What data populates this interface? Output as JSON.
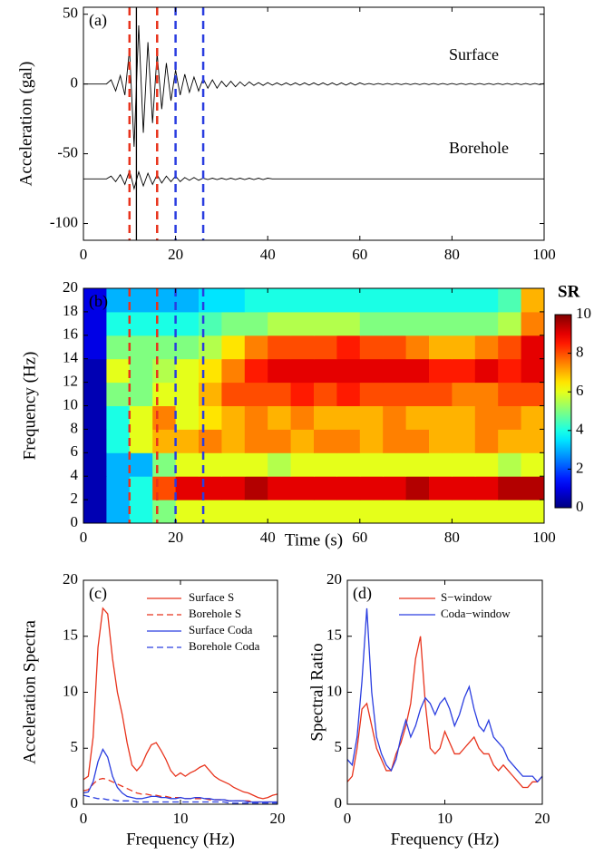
{
  "chart_data": [
    {
      "type": "line",
      "label": "(a)",
      "ylabel": "Acceleration (gal)",
      "xlim": [
        0,
        100
      ],
      "xticks": [
        0,
        20,
        40,
        60,
        80,
        100
      ],
      "ylim": [
        -112,
        55
      ],
      "yticks": [
        -100,
        -50,
        0,
        50
      ],
      "annotations": [
        "Surface",
        "Borehole"
      ],
      "vlines": [
        {
          "x": 10,
          "color": "#e8331c",
          "dash": true
        },
        {
          "x": 11.5,
          "color": "#000000",
          "dash": false
        },
        {
          "x": 16,
          "color": "#e8331c",
          "dash": true
        },
        {
          "x": 20,
          "color": "#2a3de0",
          "dash": true
        },
        {
          "x": 26,
          "color": "#2a3de0",
          "dash": true
        }
      ],
      "x": [
        0,
        1,
        2,
        3,
        4,
        5,
        6,
        7,
        8,
        9,
        10,
        11,
        12,
        13,
        14,
        15,
        16,
        17,
        18,
        19,
        20,
        21,
        22,
        23,
        24,
        25,
        26,
        27,
        28,
        29,
        30,
        31,
        32,
        33,
        34,
        35,
        36,
        37,
        38,
        39,
        40,
        41,
        42,
        43,
        44,
        45,
        46,
        47,
        48,
        49,
        50,
        51,
        52,
        53,
        54,
        55,
        56,
        57,
        58,
        59,
        60,
        61,
        62,
        63,
        64,
        65,
        66,
        67,
        68,
        69,
        70,
        71,
        72,
        73,
        74,
        75,
        76,
        77,
        78,
        79,
        80,
        81,
        82,
        83,
        84,
        85,
        86,
        87,
        88,
        89,
        90,
        91,
        92,
        93,
        94,
        95,
        96,
        97,
        98,
        99,
        100
      ],
      "series": [
        {
          "color": "#000000",
          "dash": false,
          "values": [
            0,
            0,
            0,
            0,
            0,
            0,
            3,
            -5,
            6,
            -8,
            25,
            -45,
            42,
            -35,
            30,
            -28,
            22,
            -18,
            15,
            -12,
            10,
            -8,
            7,
            -6,
            5,
            -5,
            4,
            -3,
            3,
            -3,
            2,
            -2,
            2,
            -2,
            1.5,
            -1.5,
            1.5,
            -1,
            1,
            -1,
            1,
            -0.8,
            0.8,
            -0.8,
            0.8,
            -0.8,
            0.8,
            -0.8,
            0.8,
            -0.8,
            0.8,
            -0.8,
            0.8,
            -0.8,
            0.8,
            -0.8,
            0.8,
            -0.8,
            0.8,
            -0.8,
            0.8,
            -0.4,
            0.4,
            -0.4,
            0.4,
            -0.4,
            0.4,
            -0.4,
            0.4,
            -0.4,
            0.4,
            -0.4,
            0.4,
            -0.4,
            0.4,
            -0.4,
            0.4,
            -0.4,
            0.4,
            -0.4,
            0.4,
            -0.4,
            0.4,
            -0.4,
            0.4,
            -0.4,
            0.4,
            -0.4,
            0.4,
            -0.4,
            0.4,
            -0.4,
            0.4,
            -0.4,
            0.4,
            -0.4,
            0.4,
            -0.4,
            0.4,
            -0.4,
            0.4
          ]
        },
        {
          "color": "#000000",
          "dash": false,
          "values": [
            -68,
            -68,
            -68,
            -68,
            -68,
            -68,
            -66,
            -70,
            -65,
            -72,
            -62,
            -75,
            -63,
            -73,
            -64,
            -72,
            -65,
            -71,
            -66,
            -70,
            -66,
            -70,
            -67,
            -69,
            -67,
            -69,
            -67.5,
            -68.5,
            -67.5,
            -68.5,
            -67.5,
            -68.5,
            -67.5,
            -68.5,
            -67.5,
            -68.5,
            -67.5,
            -68.5,
            -67.5,
            -68.5,
            -67.5,
            -68,
            -68,
            -68,
            -68,
            -68,
            -68,
            -68,
            -68,
            -68,
            -68,
            -68,
            -68,
            -68,
            -68,
            -68,
            -68,
            -68,
            -68,
            -68,
            -68,
            -68,
            -68,
            -68,
            -68,
            -68,
            -68,
            -68,
            -68,
            -68,
            -68,
            -68,
            -68,
            -68,
            -68,
            -68,
            -68,
            -68,
            -68,
            -68,
            -68,
            -68,
            -68,
            -68,
            -68,
            -68,
            -68,
            -68,
            -68,
            -68,
            -68,
            -68,
            -68,
            -68,
            -68,
            -68,
            -68,
            -68,
            -68,
            -68,
            -68
          ]
        }
      ]
    },
    {
      "type": "heatmap",
      "label": "(b)",
      "xlabel": "Time (s)",
      "ylabel": "Frequency (Hz)",
      "xlim": [
        0,
        100
      ],
      "xticks": [
        0,
        20,
        40,
        60,
        80,
        100
      ],
      "ylim": [
        0,
        20
      ],
      "yticks": [
        0,
        2,
        4,
        6,
        8,
        10,
        12,
        14,
        16,
        18,
        20
      ],
      "colormap": "jet",
      "zlim": [
        0,
        10
      ],
      "colorbar_label": "SR",
      "colorbar_ticks": [
        0,
        2,
        4,
        6,
        8,
        10
      ],
      "vlines": [
        {
          "x": 10,
          "color": "#e8331c",
          "dash": true
        },
        {
          "x": 16,
          "color": "#e8331c",
          "dash": true
        },
        {
          "x": 20,
          "color": "#2a3de0",
          "dash": true
        },
        {
          "x": 26,
          "color": "#2a3de0",
          "dash": true
        }
      ],
      "x_edges": [
        0,
        5,
        10,
        15,
        20,
        25,
        30,
        35,
        40,
        45,
        50,
        55,
        60,
        65,
        70,
        75,
        80,
        85,
        90,
        95,
        100
      ],
      "y_edges": [
        0,
        2,
        4,
        6,
        8,
        10,
        12,
        14,
        16,
        18,
        20
      ],
      "z": [
        [
          0.5,
          3,
          4,
          5,
          6,
          6,
          6,
          6,
          6,
          6,
          6,
          6,
          6,
          6,
          6,
          6,
          6,
          6,
          6,
          6
        ],
        [
          0.5,
          3,
          4,
          8,
          9,
          9,
          9,
          9.5,
          9,
          9,
          9,
          9,
          9,
          9,
          9.5,
          9,
          9,
          9,
          9.5,
          9.5
        ],
        [
          0.5,
          3,
          3,
          5,
          6,
          6,
          6,
          6,
          5.5,
          6,
          6,
          6,
          6,
          6,
          6,
          6,
          6,
          6,
          5.5,
          6
        ],
        [
          0.5,
          4,
          6,
          7,
          7,
          7.5,
          7,
          7.5,
          7.5,
          7,
          7.5,
          7.5,
          7,
          7.5,
          7.5,
          7,
          7,
          7.5,
          7,
          7
        ],
        [
          0.5,
          4,
          6,
          7.5,
          6,
          6.5,
          7,
          7.5,
          7,
          7.5,
          7,
          7,
          7,
          7.5,
          7,
          7,
          7,
          7.5,
          7.5,
          7
        ],
        [
          0.5,
          5,
          5,
          6,
          6,
          7,
          8,
          8,
          8,
          8.5,
          8,
          8.5,
          8,
          8,
          8,
          8,
          7.5,
          7.5,
          8,
          8
        ],
        [
          0.5,
          6,
          5,
          5.5,
          6,
          6.5,
          7.5,
          8.5,
          9,
          9,
          9,
          9,
          9,
          9,
          9,
          8.5,
          8.5,
          9,
          8.5,
          9
        ],
        [
          1,
          5,
          5,
          5,
          5,
          5.5,
          6.5,
          7.5,
          8,
          8,
          8,
          8.5,
          8,
          8,
          7.5,
          7,
          7,
          7.5,
          8,
          9
        ],
        [
          1,
          4,
          4,
          4,
          4,
          4.5,
          5,
          5,
          5.5,
          5.5,
          5.5,
          5.5,
          5,
          5,
          5,
          5,
          5,
          5,
          5.5,
          7.5
        ],
        [
          1,
          3,
          3,
          3,
          3,
          3.5,
          3.5,
          4,
          4,
          4,
          4,
          4,
          4,
          4,
          4,
          4,
          4,
          4,
          4.5,
          7
        ]
      ]
    },
    {
      "type": "line",
      "label": "(c)",
      "xlabel": "Frequency (Hz)",
      "ylabel": "Acceleration Spectra",
      "legend": true,
      "xlim": [
        0,
        20
      ],
      "xticks": [
        0,
        10,
        20
      ],
      "ylim": [
        0,
        20
      ],
      "yticks": [
        0,
        5,
        10,
        15,
        20
      ],
      "x": [
        0,
        0.5,
        1,
        1.5,
        2,
        2.5,
        3,
        3.5,
        4,
        4.5,
        5,
        5.5,
        6,
        6.5,
        7,
        7.5,
        8,
        8.5,
        9,
        9.5,
        10,
        10.5,
        11,
        11.5,
        12,
        12.5,
        13,
        13.5,
        14,
        14.5,
        15,
        15.5,
        16,
        16.5,
        17,
        17.5,
        18,
        18.5,
        19,
        19.5,
        20
      ],
      "series": [
        {
          "name": "Surface S",
          "color": "#e8331c",
          "dash": false,
          "values": [
            2.2,
            2.5,
            6,
            14,
            17.5,
            17,
            13,
            10,
            8,
            5.5,
            3.5,
            3,
            3.5,
            4.5,
            5.3,
            5.5,
            4.8,
            4,
            3,
            2.5,
            2.8,
            2.5,
            2.8,
            3,
            3.3,
            3.5,
            3,
            2.5,
            2.2,
            2,
            1.8,
            1.5,
            1.3,
            1.1,
            1,
            0.8,
            0.6,
            0.5,
            0.6,
            0.8,
            0.9
          ]
        },
        {
          "name": "Borehole S",
          "color": "#e8331c",
          "dash": true,
          "values": [
            1.2,
            1.3,
            1.8,
            2.2,
            2.3,
            2.2,
            2.0,
            1.8,
            1.6,
            1.4,
            1.2,
            1.0,
            0.9,
            0.9,
            0.8,
            0.8,
            0.7,
            0.7,
            0.6,
            0.6,
            0.6,
            0.5,
            0.5,
            0.5,
            0.5,
            0.5,
            0.4,
            0.4,
            0.4,
            0.4,
            0.3,
            0.3,
            0.3,
            0.3,
            0.3,
            0.2,
            0.2,
            0.2,
            0.2,
            0.2,
            0.2
          ]
        },
        {
          "name": "Surface Coda",
          "color": "#2a3de0",
          "dash": false,
          "values": [
            1.0,
            1.1,
            2.0,
            3.8,
            4.9,
            4.2,
            2.5,
            1.5,
            1.0,
            0.7,
            0.6,
            0.5,
            0.5,
            0.6,
            0.7,
            0.7,
            0.6,
            0.6,
            0.5,
            0.5,
            0.6,
            0.5,
            0.5,
            0.6,
            0.6,
            0.5,
            0.5,
            0.4,
            0.4,
            0.4,
            0.3,
            0.3,
            0.3,
            0.3,
            0.2,
            0.2,
            0.2,
            0.2,
            0.2,
            0.2,
            0.2
          ]
        },
        {
          "name": "Borehole Coda",
          "color": "#2a3de0",
          "dash": true,
          "values": [
            0.8,
            0.7,
            0.6,
            0.5,
            0.5,
            0.4,
            0.4,
            0.3,
            0.3,
            0.3,
            0.3,
            0.2,
            0.2,
            0.2,
            0.2,
            0.2,
            0.2,
            0.2,
            0.2,
            0.2,
            0.2,
            0.2,
            0.2,
            0.2,
            0.2,
            0.2,
            0.2,
            0.2,
            0.2,
            0.2,
            0.1,
            0.1,
            0.1,
            0.1,
            0.1,
            0.1,
            0.1,
            0.1,
            0.1,
            0.1,
            0.1
          ]
        }
      ]
    },
    {
      "type": "line",
      "label": "(d)",
      "xlabel": "Frequency (Hz)",
      "ylabel": "Spectral Ratio",
      "legend": true,
      "xlim": [
        0,
        20
      ],
      "xticks": [
        0,
        10,
        20
      ],
      "ylim": [
        0,
        20
      ],
      "yticks": [
        0,
        5,
        10,
        15,
        20
      ],
      "x": [
        0,
        0.5,
        1,
        1.5,
        2,
        2.5,
        3,
        3.5,
        4,
        4.5,
        5,
        5.5,
        6,
        6.5,
        7,
        7.5,
        8,
        8.5,
        9,
        9.5,
        10,
        10.5,
        11,
        11.5,
        12,
        12.5,
        13,
        13.5,
        14,
        14.5,
        15,
        15.5,
        16,
        16.5,
        17,
        17.5,
        18,
        18.5,
        19,
        19.5,
        20
      ],
      "series": [
        {
          "name": "S−window",
          "color": "#e8331c",
          "dash": false,
          "values": [
            2,
            2.5,
            5,
            8.5,
            9,
            7,
            5,
            4,
            3,
            3,
            4.5,
            5.5,
            7,
            9,
            13,
            15,
            9,
            5,
            4.5,
            5,
            6.5,
            5.5,
            4.5,
            4.5,
            5,
            5.5,
            6,
            5,
            4.5,
            4.5,
            3.5,
            3,
            3.5,
            3,
            2.5,
            2,
            1.5,
            1.5,
            2,
            2,
            2.5
          ]
        },
        {
          "name": "Coda−window",
          "color": "#2a3de0",
          "dash": false,
          "values": [
            4,
            3.5,
            6,
            11,
            17.5,
            10,
            6,
            4.5,
            3.5,
            3,
            4,
            6,
            7.5,
            6,
            7,
            8.5,
            9.5,
            9,
            8,
            9,
            9.5,
            8.5,
            7,
            8,
            9.5,
            10.5,
            8.5,
            7,
            6.5,
            7.5,
            6,
            5.5,
            5,
            4,
            3.5,
            3,
            2.5,
            2.5,
            2.5,
            2,
            2.5
          ]
        }
      ]
    }
  ]
}
